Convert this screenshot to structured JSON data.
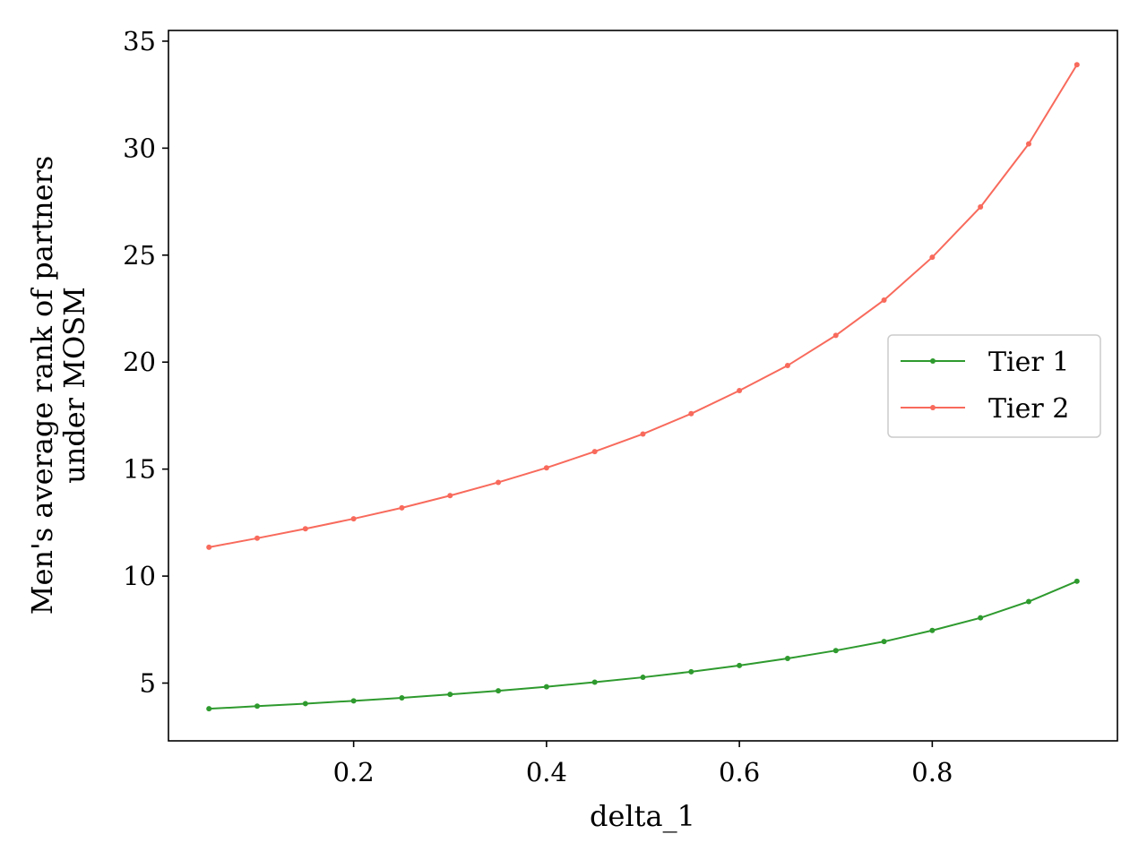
{
  "chart_data": {
    "type": "line",
    "title": "",
    "xlabel": "delta_1",
    "ylabel_lines": [
      "Men's average rank of partners",
      "under MOSM"
    ],
    "xlim": [
      0.008,
      0.992
    ],
    "ylim": [
      2.3,
      35.5
    ],
    "xticks": [
      0.2,
      0.4,
      0.6,
      0.8
    ],
    "xtick_labels": [
      "0.2",
      "0.4",
      "0.6",
      "0.8"
    ],
    "yticks": [
      5,
      10,
      15,
      20,
      25,
      30,
      35
    ],
    "ytick_labels": [
      "5",
      "10",
      "15",
      "20",
      "25",
      "30",
      "35"
    ],
    "grid": false,
    "legend_position": "center-right",
    "x": [
      0.05,
      0.1,
      0.15,
      0.2,
      0.25,
      0.3,
      0.35,
      0.4,
      0.45,
      0.5,
      0.55,
      0.6,
      0.65,
      0.7,
      0.75,
      0.8,
      0.85,
      0.9,
      0.95
    ],
    "series": [
      {
        "name": "Tier 1",
        "color": "#2e9a2e",
        "values": [
          3.8,
          3.92,
          4.04,
          4.17,
          4.31,
          4.47,
          4.64,
          4.83,
          5.04,
          5.27,
          5.53,
          5.82,
          6.15,
          6.52,
          6.94,
          7.46,
          8.05,
          8.81,
          9.76
        ]
      },
      {
        "name": "Tier 2",
        "color": "#f86a5c",
        "values": [
          11.35,
          11.77,
          12.21,
          12.68,
          13.19,
          13.76,
          14.38,
          15.06,
          15.82,
          16.64,
          17.59,
          18.67,
          19.84,
          21.25,
          22.9,
          24.9,
          27.25,
          30.2,
          33.9
        ]
      }
    ]
  }
}
